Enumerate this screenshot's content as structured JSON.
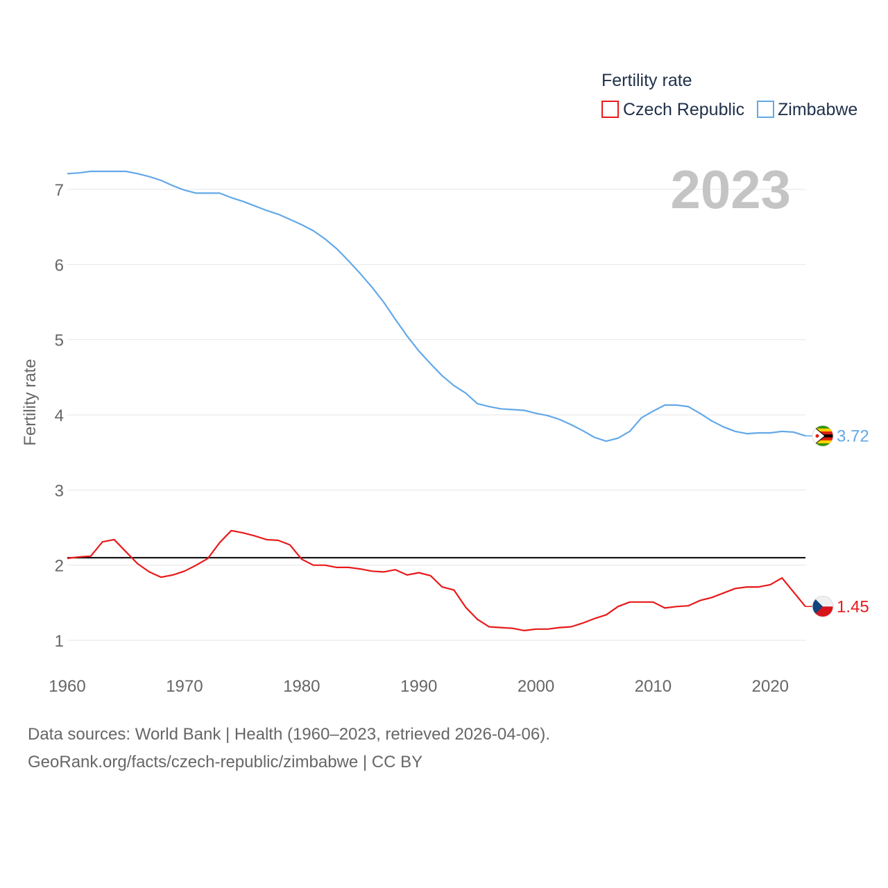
{
  "chart_data": {
    "type": "line",
    "title": "Fertility rate",
    "ylabel": "Fertility rate",
    "xlabel": "",
    "year_label": "2023",
    "xlim": [
      1960,
      2023
    ],
    "ylim": [
      0.5,
      7.5
    ],
    "x_ticks": [
      1960,
      1970,
      1980,
      1990,
      2000,
      2010,
      2020
    ],
    "y_ticks": [
      1,
      2,
      3,
      4,
      5,
      6,
      7
    ],
    "reference_line": {
      "value": 2.1,
      "color": "#000000"
    },
    "x": [
      1960,
      1961,
      1962,
      1963,
      1964,
      1965,
      1966,
      1967,
      1968,
      1969,
      1970,
      1971,
      1972,
      1973,
      1974,
      1975,
      1976,
      1977,
      1978,
      1979,
      1980,
      1981,
      1982,
      1983,
      1984,
      1985,
      1986,
      1987,
      1988,
      1989,
      1990,
      1991,
      1992,
      1993,
      1994,
      1995,
      1996,
      1997,
      1998,
      1999,
      2000,
      2001,
      2002,
      2003,
      2004,
      2005,
      2006,
      2007,
      2008,
      2009,
      2010,
      2011,
      2012,
      2013,
      2014,
      2015,
      2016,
      2017,
      2018,
      2019,
      2020,
      2021,
      2022,
      2023
    ],
    "series": [
      {
        "name": "Czech Republic",
        "color": "#e8191a",
        "end_label": "1.45",
        "values": [
          2.09,
          2.11,
          2.12,
          2.31,
          2.34,
          2.18,
          2.02,
          1.91,
          1.84,
          1.87,
          1.92,
          2.0,
          2.09,
          2.3,
          2.46,
          2.43,
          2.39,
          2.34,
          2.33,
          2.27,
          2.08,
          2.0,
          2.0,
          1.97,
          1.97,
          1.95,
          1.92,
          1.91,
          1.94,
          1.87,
          1.9,
          1.86,
          1.71,
          1.67,
          1.44,
          1.28,
          1.18,
          1.17,
          1.16,
          1.13,
          1.15,
          1.15,
          1.17,
          1.18,
          1.23,
          1.29,
          1.34,
          1.45,
          1.51,
          1.51,
          1.51,
          1.43,
          1.45,
          1.46,
          1.53,
          1.57,
          1.63,
          1.69,
          1.71,
          1.71,
          1.74,
          1.83,
          1.64,
          1.45
        ]
      },
      {
        "name": "Zimbabwe",
        "color": "#62a8e8",
        "end_label": "3.72",
        "values": [
          7.21,
          7.22,
          7.24,
          7.24,
          7.24,
          7.24,
          7.21,
          7.17,
          7.12,
          7.05,
          6.99,
          6.95,
          6.95,
          6.95,
          6.89,
          6.84,
          6.78,
          6.72,
          6.67,
          6.6,
          6.53,
          6.45,
          6.34,
          6.21,
          6.05,
          5.88,
          5.7,
          5.5,
          5.27,
          5.05,
          4.85,
          4.68,
          4.52,
          4.39,
          4.29,
          4.15,
          4.11,
          4.08,
          4.07,
          4.06,
          4.02,
          3.99,
          3.94,
          3.87,
          3.79,
          3.7,
          3.65,
          3.69,
          3.78,
          3.96,
          4.05,
          4.13,
          4.13,
          4.11,
          4.02,
          3.92,
          3.84,
          3.78,
          3.75,
          3.76,
          3.76,
          3.78,
          3.77,
          3.72
        ]
      }
    ]
  },
  "source": {
    "line1": "Data sources: World Bank | Health (1960–2023, retrieved 2026-04-06).",
    "line2": "GeoRank.org/facts/czech-republic/zimbabwe | CC BY"
  }
}
